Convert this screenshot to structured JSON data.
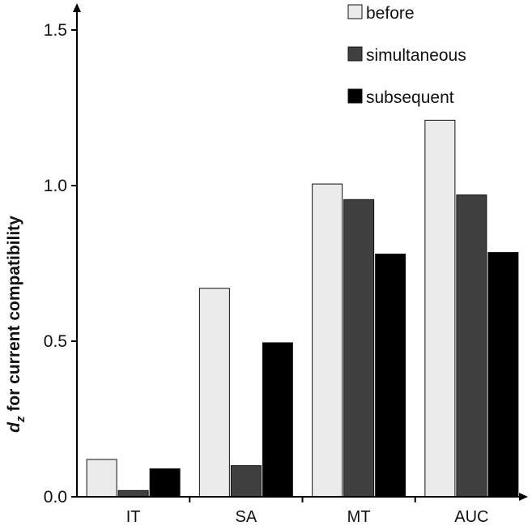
{
  "chart_data": {
    "type": "bar",
    "title": "",
    "xlabel": "",
    "ylabel": {
      "main": "d",
      "subscript": "z",
      "rest": " for current compatibility"
    },
    "ylim": [
      0,
      1.5
    ],
    "yticks": [
      "0.0",
      "0.5",
      "1.0",
      "1.5"
    ],
    "ytick_values": [
      0.0,
      0.5,
      1.0,
      1.5
    ],
    "categories": [
      "IT",
      "SA",
      "MT",
      "AUC"
    ],
    "series": [
      {
        "name": "before",
        "color": "#ebebeb",
        "values": [
          0.12,
          0.67,
          1.005,
          1.21
        ]
      },
      {
        "name": "simultaneous",
        "color": "#404040",
        "values": [
          0.02,
          0.1,
          0.955,
          0.97
        ]
      },
      {
        "name": "subsequent",
        "color": "#000000",
        "values": [
          0.09,
          0.495,
          0.78,
          0.785
        ]
      }
    ],
    "legend_position": "top-right"
  }
}
